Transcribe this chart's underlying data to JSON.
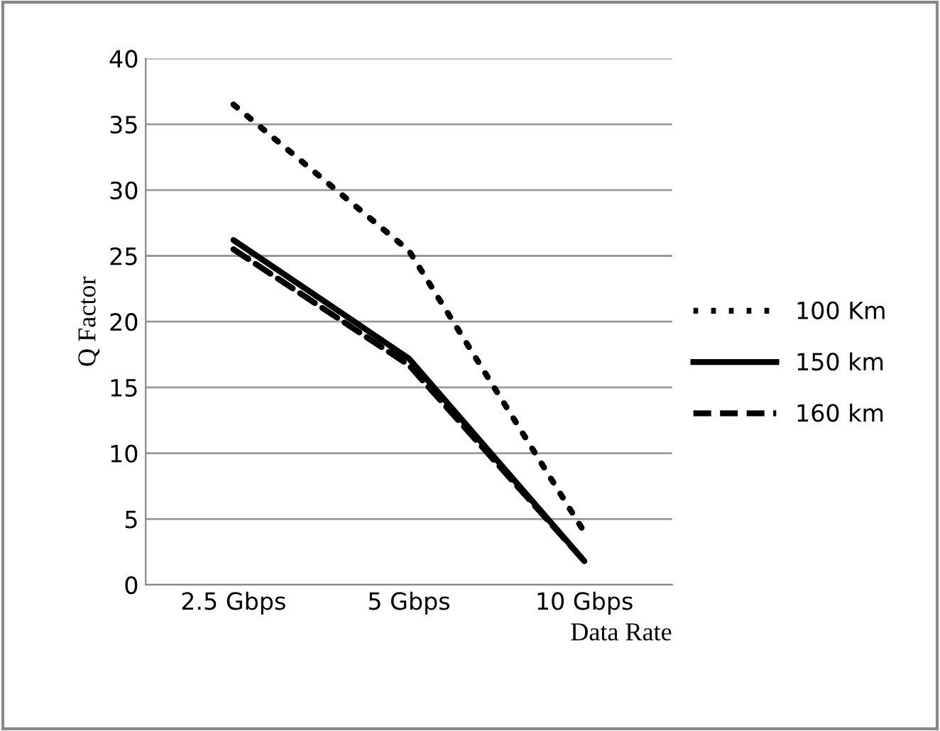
{
  "chart_data": {
    "type": "line",
    "xlabel": "Data Rate",
    "ylabel": "Q Factor",
    "categories": [
      "2.5 Gbps",
      "5 Gbps",
      "10 Gbps"
    ],
    "series": [
      {
        "name": "100 Km",
        "color": "#000000",
        "line_style": "dotted",
        "values": [
          36.5,
          25.4,
          4.0
        ]
      },
      {
        "name": "150 km",
        "color": "#000000",
        "line_style": "solid",
        "values": [
          26.2,
          17.2,
          1.8
        ]
      },
      {
        "name": "160 km",
        "color": "#000000",
        "line_style": "dashed",
        "values": [
          25.5,
          16.7,
          1.8
        ]
      }
    ],
    "ylim": [
      0,
      40
    ],
    "yticks": [
      0,
      5,
      10,
      15,
      20,
      25,
      30,
      35,
      40
    ],
    "grid": "y",
    "legend": "right",
    "marker": "none"
  }
}
